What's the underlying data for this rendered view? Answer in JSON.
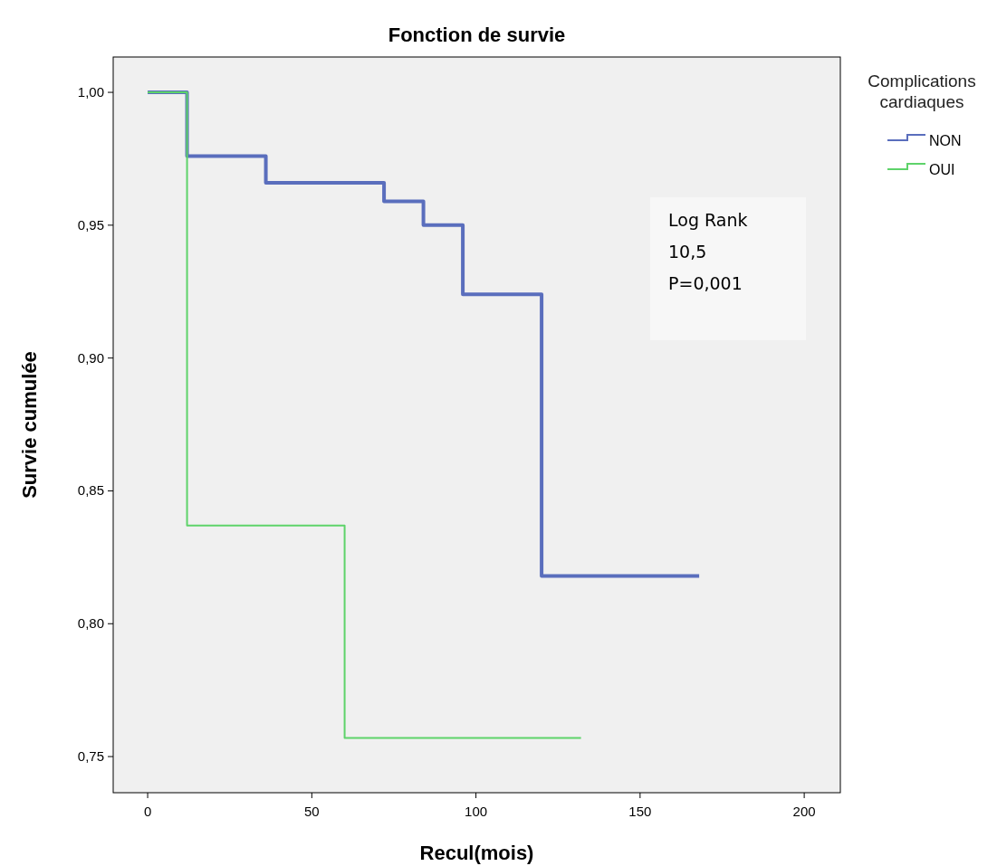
{
  "chart_data": {
    "type": "step",
    "title": "Fonction de survie",
    "xlabel": "Recul(mois)",
    "ylabel": "Survie cumulée",
    "legend_title": "Complications cardiaques",
    "legend": "top right",
    "xlim": [
      -10.5,
      211
    ],
    "xticks": [
      0,
      50,
      100,
      150,
      200
    ],
    "ylim": [
      0.7364,
      1.0133
    ],
    "yticks": [
      {
        "value": 0.75,
        "label": "0,75"
      },
      {
        "value": 0.8,
        "label": "0,80"
      },
      {
        "value": 0.85,
        "label": "0,85"
      },
      {
        "value": 0.9,
        "label": "0,90"
      },
      {
        "value": 0.95,
        "label": "0,95"
      },
      {
        "value": 1,
        "label": "1,00"
      }
    ],
    "grid": false,
    "series": [
      {
        "name": "NON",
        "color": "#5a6ebd",
        "x": [
          0,
          12,
          36,
          72,
          84,
          96,
          120,
          168
        ],
        "values": [
          1,
          0.976,
          0.966,
          0.959,
          0.95,
          0.924,
          0.818,
          0.818
        ]
      },
      {
        "name": "OUI",
        "color": "#5ed36a",
        "x": [
          0,
          12,
          60,
          132
        ],
        "values": [
          1,
          0.837,
          0.757,
          0.757
        ]
      }
    ],
    "annotations": [
      "Log Rank\n10,5\nP=0,001"
    ]
  }
}
